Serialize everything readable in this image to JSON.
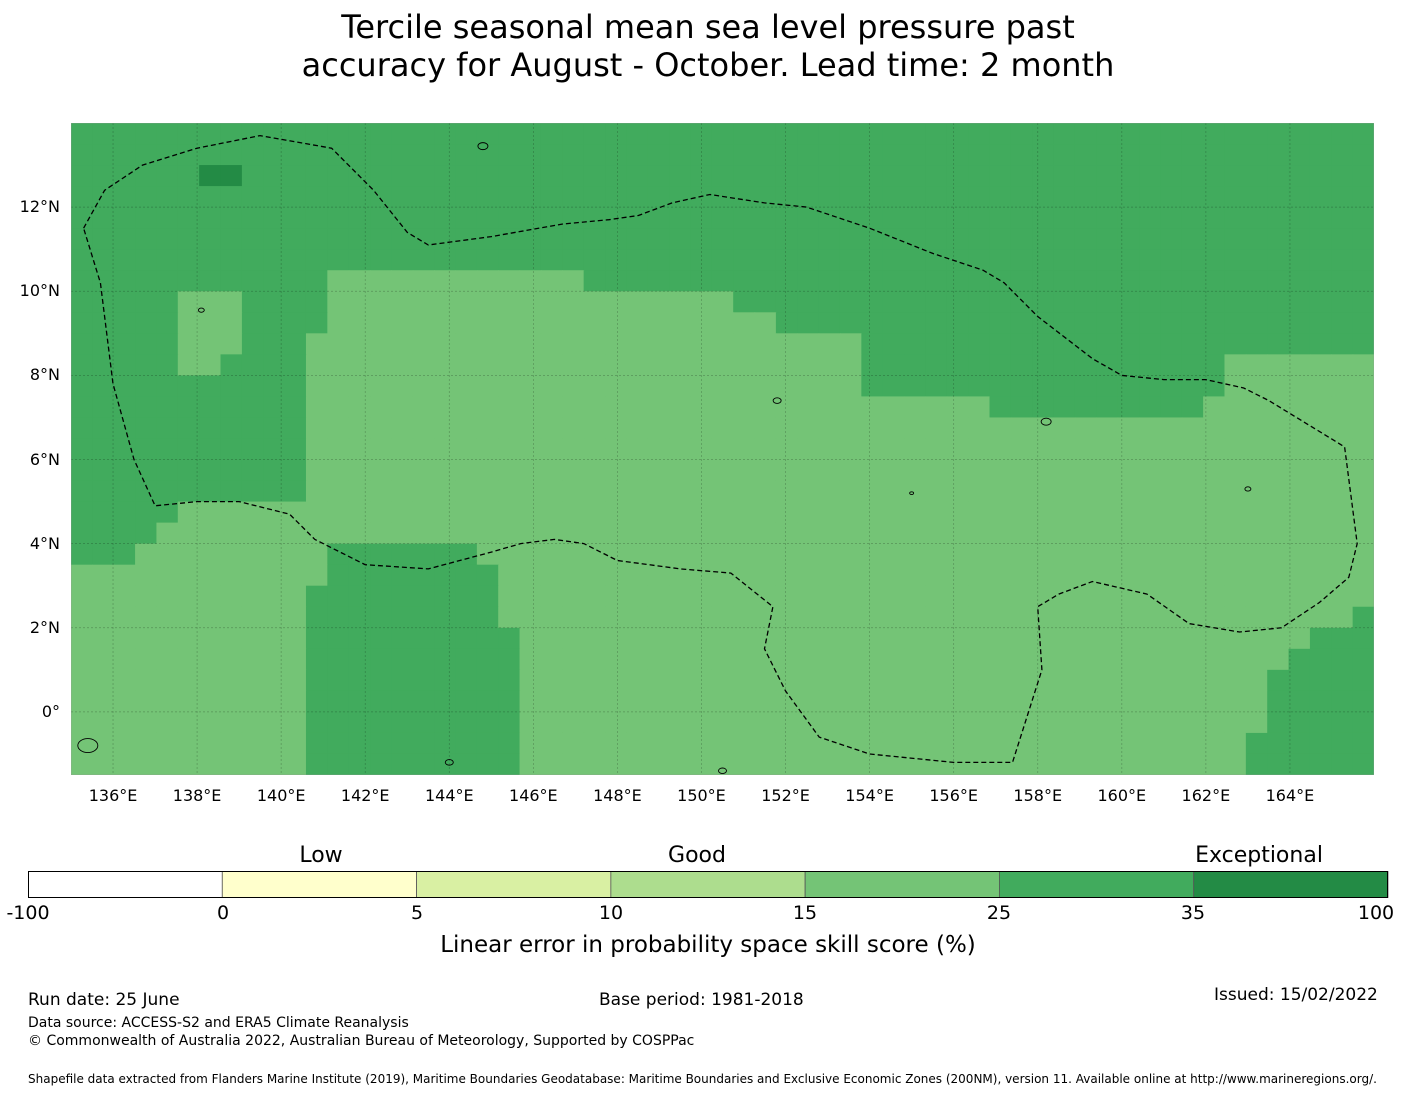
{
  "title": {
    "line1": "Tercile seasonal mean sea level pressure past",
    "line2": "accuracy for August - October. Lead time: 2 month"
  },
  "map": {
    "lat_labels": [
      "12°N",
      "10°N",
      "8°N",
      "6°N",
      "4°N",
      "2°N",
      "0°"
    ],
    "lon_labels": [
      "136°E",
      "138°E",
      "140°E",
      "142°E",
      "144°E",
      "146°E",
      "148°E",
      "150°E",
      "152°E",
      "154°E",
      "156°E",
      "158°E",
      "160°E",
      "162°E",
      "164°E"
    ],
    "lon_range": [
      135.0,
      166.0
    ],
    "lat_range": [
      -1.5,
      14.0
    ],
    "grid": true,
    "cell_deg": 0.8333,
    "eez_boundary": "Federated States of Micronesia",
    "colors": {
      "c15_25": "#74c476",
      "c25_35": "#41ab5d",
      "c35_100": "#238b45"
    },
    "skill_grid": [
      "3333333333333333333333333333333333333333333333333333333333333",
      "3333333333333333333333333333333333333333333333333333333333333",
      "3333334433333333333333333333333333333333333333333333333333333",
      "3333333333333333333333333333333333333333333333333333333333333",
      "3333333333333333333333333333333333333333333333333333333333333",
      "3333333333333333333333333333333333333333333333333333333333333",
      "3333333333333333333333333333333333333333333333333333333333333",
      "3333333333332222222222223333333333333333333333333333333333333",
      "3333322233332222222222222222222333333333333333333333333333333",
      "3333322233332222222222222222222223333333333333333333333333333",
      "3333322233322222222222222222222222222333333333333333333333333",
      "3333322333322222222222222222222222222333333333333333332222222",
      "3333333333322222222222222222222222222333333333333333332222222",
      "3333333333322222222222222222222222222222222333333333322222222",
      "3333333333322222222222222222222222222222222222222222222222222",
      "3333333333322222222222222222222222222222222222222222222222222",
      "3333333333322222222222222222222222222222222222222222222222222",
      "3333333333322222222222222222222222222222222222222222222222222",
      "3333322222222222222222222222222222222222222222222222222222222",
      "3333222222222222222222222222222222222222222222222222222222222",
      "3332222222223333333222222222222222222222222222222222222222222",
      "2222222222223333333322222222222222222222222222222222222222222",
      "2222222222233333333322222222222222222222222222222222222222222",
      "2222222222233333333322222222222222222222222222222222222222223",
      "2222222222233333333332222222222222222222222222222222222222333",
      "2222222222233333333332222222222222222222222222222222222223333",
      "2222222222233333333332222222222222222222222222222222222233333",
      "2222222222233333333332222222222222222222222222222222222233333",
      "2222222222233333333332222222222222222222222222222222222233333",
      "2222222222233333333332222222222222222222222222222222222333333",
      "2222222222233333333332222222222222222222222222222222222333333"
    ]
  },
  "colorbar": {
    "tiers": [
      "Low",
      "Good",
      "Exceptional"
    ],
    "ticks": [
      "-100",
      "0",
      "5",
      "10",
      "15",
      "25",
      "35",
      "100"
    ],
    "colors": [
      "#ffffff",
      "#ffffcc",
      "#d9f0a3",
      "#addd8e",
      "#74c476",
      "#41ab5d",
      "#238b45"
    ],
    "label": "Linear error in probability space skill score (%)"
  },
  "footer": {
    "run_date": "Run date: 25 June",
    "base_period": "Base period: 1981-2018",
    "issued": "Issued: 15/02/2022",
    "data_source": "Data source: ACCESS-S2 and ERA5 Climate Reanalysis",
    "copyright": "© Commonwealth of Australia 2022, Australian Bureau of Meteorology, Supported by COSPPac",
    "shapefile": "Shapefile data extracted from Flanders Marine Institute (2019), Maritime Boundaries Geodatabase: Maritime Boundaries and Exclusive Economic Zones (200NM), version 11. Available online at http://www.marineregions.org/."
  }
}
